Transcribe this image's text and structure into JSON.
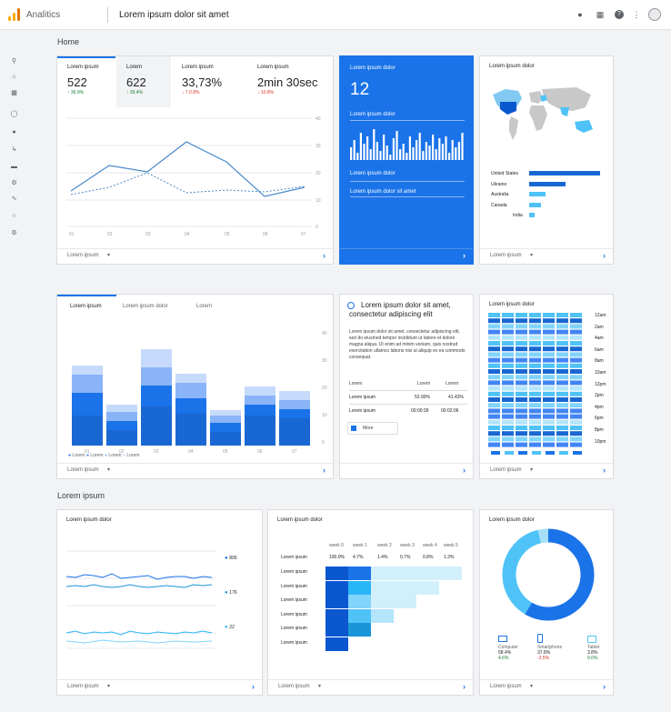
{
  "app": {
    "name": "Analitics",
    "page_title": "Lorem ipsum dolor sit amet"
  },
  "colors": {
    "primary": "#1a73e8",
    "dark": "#0b57d0",
    "light": "#aecbfa",
    "lighter": "#d2e3fc",
    "cyan": "#4fc3f7",
    "positive": "#188038",
    "negative": "#d93025"
  },
  "topbar": {
    "icons": [
      "bell-icon",
      "apps-grid-icon",
      "help-icon",
      "more-vert-icon",
      "account-icon"
    ]
  },
  "sidebar": {
    "icons": [
      "search-icon",
      "home-icon",
      "reports-icon",
      "explore-icon",
      "audience-icon",
      "flow-icon",
      "database-icon",
      "settings-gear-icon",
      "trend-icon",
      "lightbulb-icon",
      "admin-gear-icon"
    ]
  },
  "home": {
    "title": "Home"
  },
  "metrics": [
    {
      "label": "Lorem ipsum",
      "value": "522",
      "delta": "↑ 36.9%",
      "dir": "up"
    },
    {
      "label": "Lorem",
      "value": "622",
      "delta": "↑ 39.4%",
      "dir": "up"
    },
    {
      "label": "Lorem ipsum",
      "value": "33,73%",
      "delta": "↓ 7.0.8%",
      "dir": "down"
    },
    {
      "label": "Lorem ipsum",
      "value": "2min 30sec",
      "delta": "↓ 10.8%",
      "dir": "down"
    }
  ],
  "footer": {
    "label": "Lorem ipsum",
    "arrow": "›"
  },
  "realtime": {
    "label1": "Lorem ipsum dolor",
    "value": "12",
    "label2": "Lorem ipsum dolor",
    "label3": "Lorem ipsum dolor",
    "label4": "Lorem ipsum dolor sit amet"
  },
  "map": {
    "title": "Lorem ipsum dolor",
    "countries": [
      "United States",
      "Ukraine",
      "Australia",
      "Canada",
      "India"
    ]
  },
  "tabs": [
    "Lorem ipsum",
    "Lorem ipsum dolor",
    "Lorem"
  ],
  "legend": [
    "Lorem",
    "Lorem",
    "Lorem",
    "Lorem"
  ],
  "insight": {
    "title": "Lorem ipsum dolor sit amet, consectetur adipiscing elit",
    "body": "Lorem ipsum dolor sit amet, consectetur adipiscing elit, sed do eiusmod tempor incididunt ut labore et dolore magna aliqua. Ut enim ad minim veniam, quis nostrud exercitation ullamco laboris nisi ut aliquip ex ea commodo consequat.",
    "header": [
      "Lorem",
      "Lorem",
      "Lorem"
    ],
    "rows": [
      [
        "Lorem ipsum",
        "52.00%",
        "41.43%"
      ],
      [
        "Lorem ipsum",
        "00:00:39",
        "00:02:06"
      ]
    ],
    "button": "More"
  },
  "heatmap": {
    "title": "Lorem ipsum dolor",
    "hours": [
      "12am",
      "2am",
      "4am",
      "6am",
      "8am",
      "10am",
      "12pm",
      "2pm",
      "4pm",
      "6pm",
      "8pm",
      "10pm"
    ]
  },
  "section2": {
    "title": "Lorem ipsum"
  },
  "lines": {
    "title": "Lorem ipsum dolor",
    "series": [
      {
        "value": "805"
      },
      {
        "value": "176"
      },
      {
        "value": "22"
      }
    ]
  },
  "cohort": {
    "title": "Lorem ipsum dolor",
    "columns": [
      "week 0",
      "week 1",
      "week 2",
      "week 3",
      "week 4",
      "week 5"
    ],
    "first": [
      "Lorem ipsum",
      "100.0%",
      "4.7%",
      "1.4%",
      "0.7%",
      "0.8%",
      "1.3%"
    ],
    "rowlabel": "Lorem ipsum"
  },
  "donut": {
    "title": "Lorem ipsum dolor",
    "devices": [
      {
        "name": "Computer",
        "value": "58.4%",
        "delta": "4.6%"
      },
      {
        "name": "Smartphone",
        "value": "37.8%",
        "delta": "-2.5%"
      },
      {
        "name": "Tablet",
        "value": "3.8%",
        "delta": "9.0%"
      }
    ]
  }
}
